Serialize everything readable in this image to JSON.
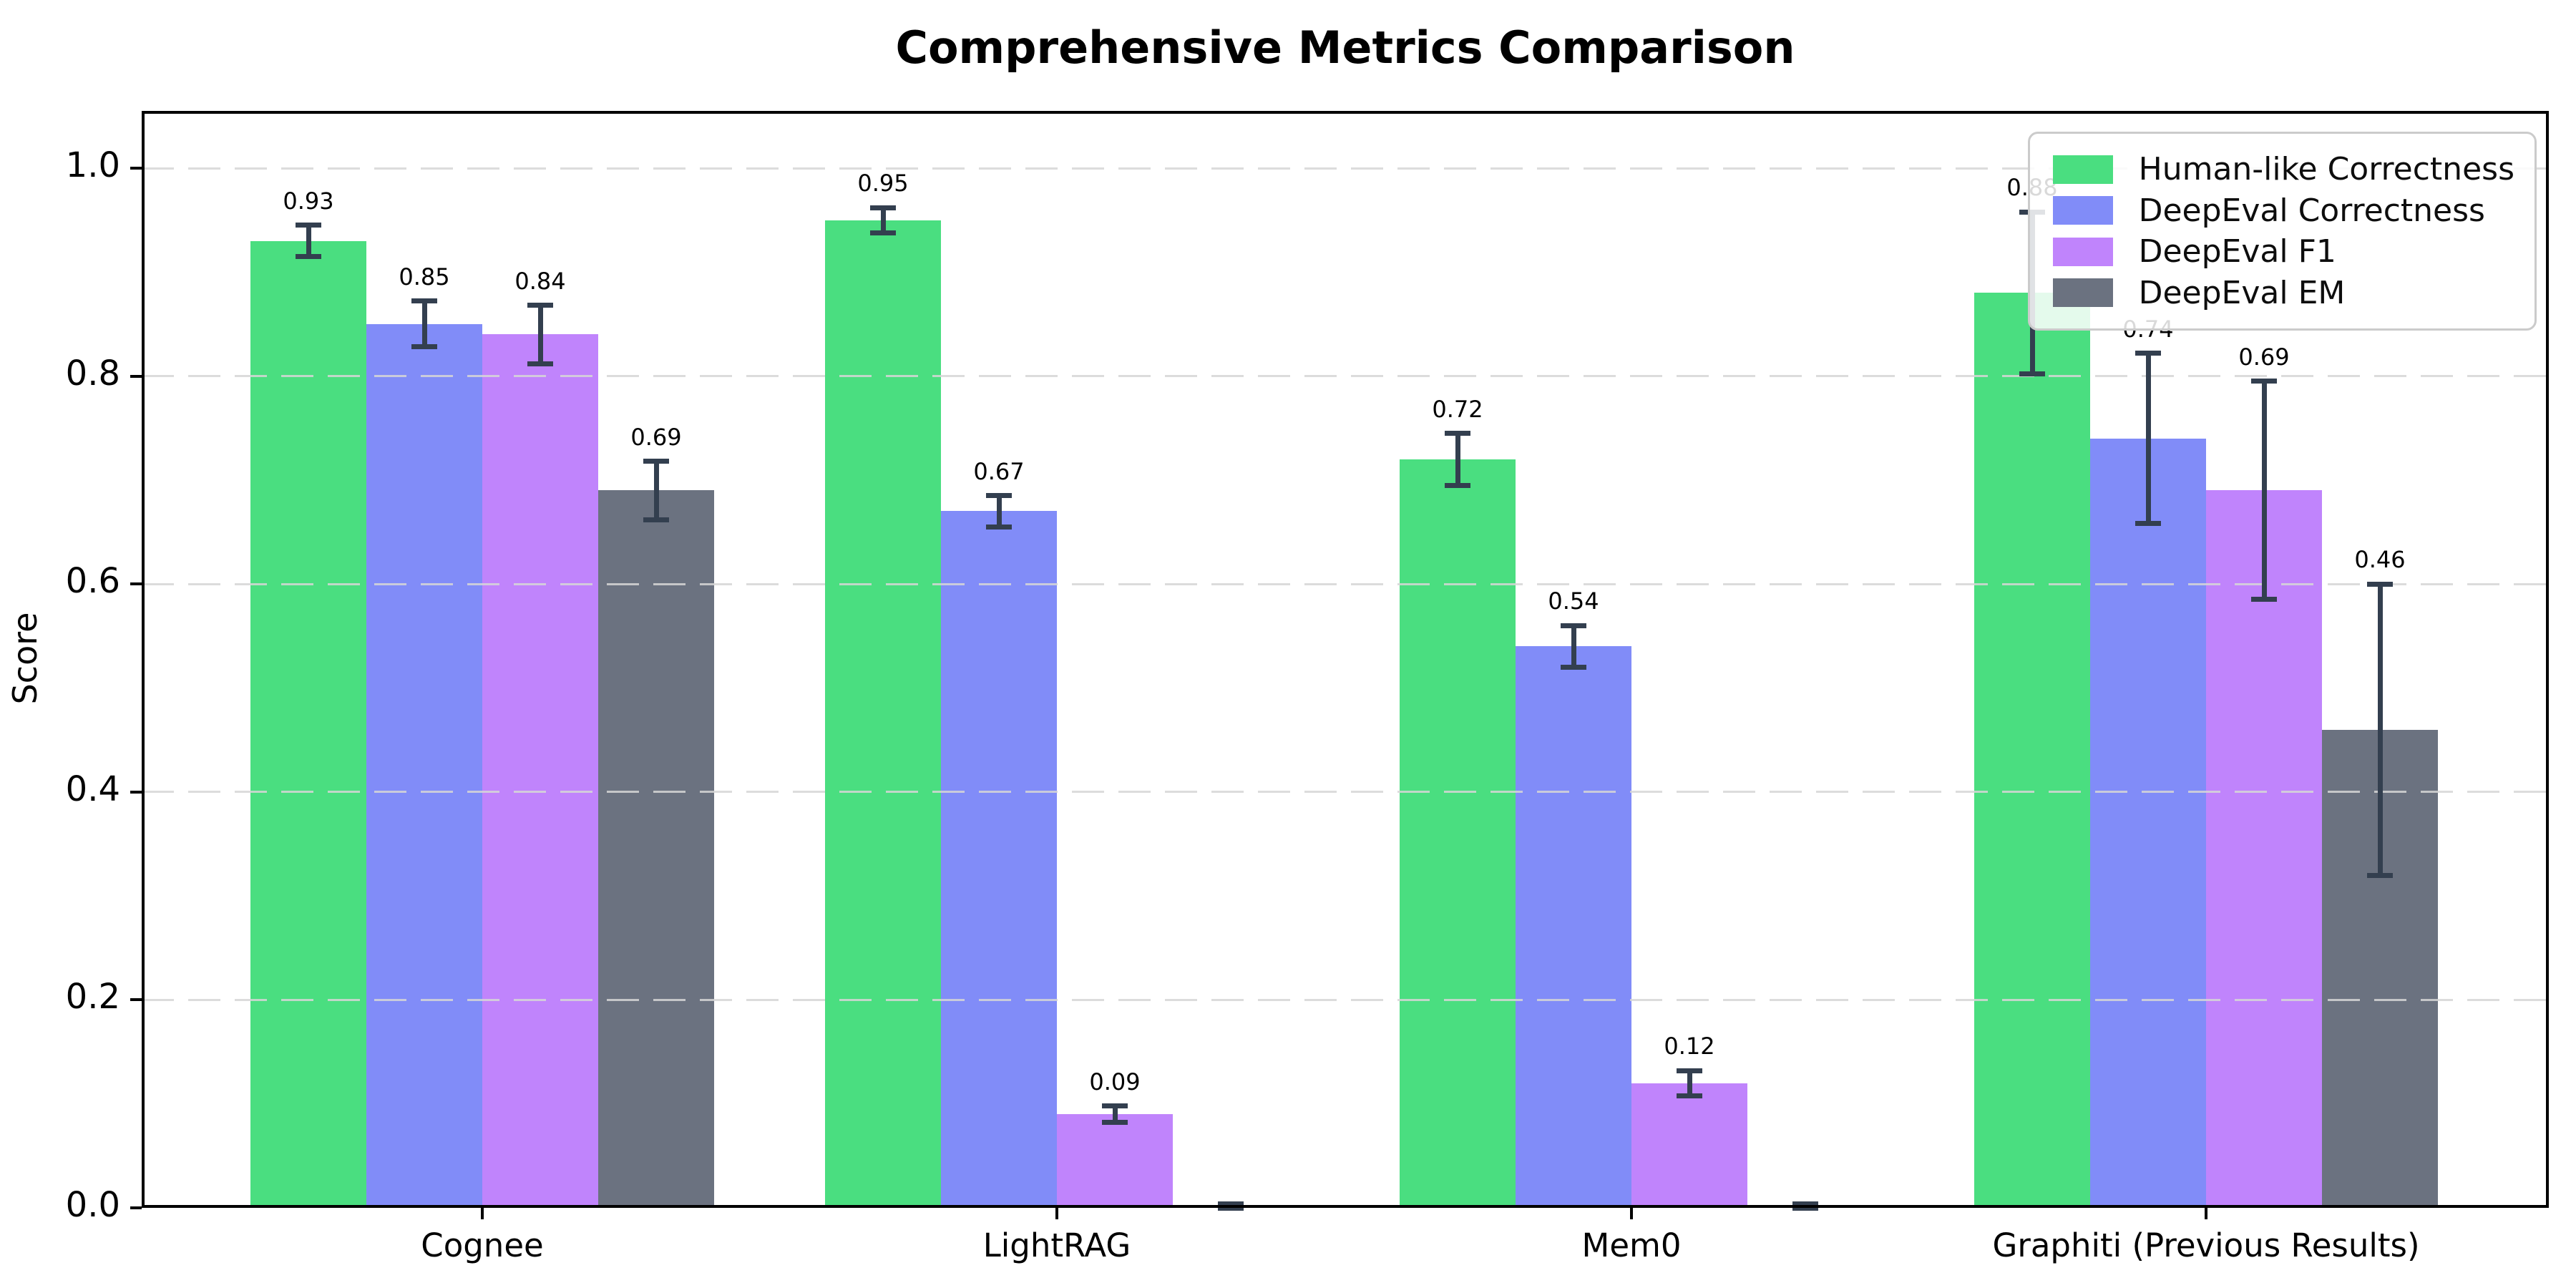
{
  "title": "Comprehensive Metrics Comparison",
  "chart_data": {
    "type": "bar",
    "title": "Comprehensive Metrics Comparison",
    "xlabel": "",
    "ylabel": "Score",
    "ylim": [
      0.0,
      1.057
    ],
    "grid": true,
    "grid_style": "dashed",
    "grid_color": "#d6d6d6",
    "error_bar_color": "#333f4f",
    "legend_position": "upper right",
    "yticks": [
      0.0,
      0.2,
      0.4,
      0.6,
      0.8,
      1.0
    ],
    "ytick_labels": [
      "0.0",
      "0.2",
      "0.4",
      "0.6",
      "0.8",
      "1.0"
    ],
    "categories": [
      "Cognee",
      "LightRAG",
      "Mem0",
      "Graphiti (Previous Results)"
    ],
    "series": [
      {
        "name": "Human-like Correctness",
        "color": "#4ade80",
        "values": [
          0.93,
          0.95,
          0.72,
          0.88
        ],
        "errors": [
          0.015,
          0.012,
          0.025,
          0.078
        ],
        "labels": [
          "0.93",
          "0.95",
          "0.72",
          "0.88"
        ]
      },
      {
        "name": "DeepEval Correctness",
        "color": "#818cf8",
        "values": [
          0.85,
          0.67,
          0.54,
          0.74
        ],
        "errors": [
          0.022,
          0.015,
          0.02,
          0.082
        ],
        "labels": [
          "0.85",
          "0.67",
          "0.54",
          "0.74"
        ]
      },
      {
        "name": "DeepEval F1",
        "color": "#c084fc",
        "values": [
          0.84,
          0.09,
          0.12,
          0.69
        ],
        "errors": [
          0.028,
          0.008,
          0.012,
          0.105
        ],
        "labels": [
          "0.84",
          "0.09",
          "0.12",
          "0.69"
        ]
      },
      {
        "name": "DeepEval EM",
        "color": "#6b7280",
        "values": [
          0.69,
          0.0,
          0.0,
          0.46
        ],
        "errors": [
          0.028,
          0.004,
          0.004,
          0.14
        ],
        "labels": [
          "0.69",
          "",
          "",
          "0.46"
        ]
      }
    ]
  }
}
